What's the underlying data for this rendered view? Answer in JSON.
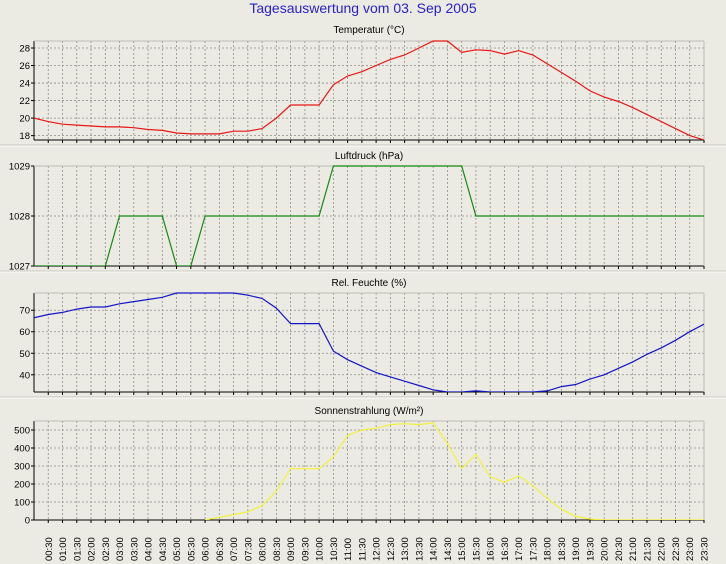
{
  "title": "Tagesauswertung vom 03. Sep 2005",
  "colors": {
    "background": "#ecebe3",
    "title": "#2a22c4",
    "grid": "#8e8e8e",
    "temperature": "#e81616",
    "pressure": "#138a13",
    "humidity": "#1414c8",
    "solar": "#f2f23a"
  },
  "x_tick_labels": [
    "00:30",
    "01:00",
    "01:30",
    "02:00",
    "02:30",
    "03:00",
    "03:30",
    "04:00",
    "04:30",
    "05:00",
    "05:30",
    "06:00",
    "06:30",
    "07:00",
    "07:30",
    "08:00",
    "08:30",
    "09:00",
    "09:30",
    "10:00",
    "10:30",
    "11:00",
    "11:30",
    "12:00",
    "12:30",
    "13:00",
    "13:30",
    "14:00",
    "14:30",
    "15:00",
    "15:30",
    "16:00",
    "16:30",
    "17:00",
    "17:30",
    "18:00",
    "18:30",
    "19:00",
    "19:30",
    "20:00",
    "20:30",
    "21:00",
    "21:30",
    "22:00",
    "22:30",
    "23:00",
    "23:30"
  ],
  "chart_data": [
    {
      "type": "line",
      "title": "Temperatur (°C)",
      "ylim": [
        17.5,
        28.8
      ],
      "yticks": [
        18,
        20,
        22,
        24,
        26,
        28
      ],
      "grid": true,
      "series": [
        {
          "color": "#e81616",
          "x": [
            0,
            1,
            2,
            3,
            4,
            5,
            6,
            7,
            8,
            9,
            10,
            11,
            12,
            13,
            14,
            15,
            16,
            17,
            18,
            19,
            20,
            21,
            22,
            23,
            24,
            25,
            26,
            27,
            28,
            29,
            30,
            31,
            32,
            33,
            34,
            35,
            36,
            37,
            38,
            39,
            40,
            41,
            42,
            43,
            44,
            45,
            46,
            47
          ],
          "values": [
            20.0,
            19.6,
            19.3,
            19.2,
            19.1,
            19.0,
            19.0,
            18.9,
            18.7,
            18.6,
            18.3,
            18.2,
            18.2,
            18.2,
            18.5,
            18.5,
            18.8,
            20.0,
            21.5,
            21.5,
            21.5,
            23.8,
            24.8,
            25.3,
            26.0,
            26.7,
            27.2,
            28.0,
            28.8,
            28.8,
            27.5,
            27.8,
            27.7,
            27.3,
            27.7,
            27.2,
            26.2,
            25.2,
            24.2,
            23.1,
            22.4,
            21.9,
            21.2,
            20.4,
            19.6,
            18.8,
            18.0,
            17.5
          ]
        }
      ]
    },
    {
      "type": "line",
      "title": "Luftdruck (hPa)",
      "ylim": [
        1027,
        1029
      ],
      "yticks": [
        1027,
        1028,
        1029
      ],
      "grid": true,
      "series": [
        {
          "color": "#138a13",
          "x": [
            0,
            5,
            6,
            9,
            10,
            11,
            12,
            20,
            21,
            30,
            31,
            47
          ],
          "values": [
            1027,
            1027,
            1028,
            1028,
            1027,
            1027,
            1028,
            1028,
            1029,
            1029,
            1028,
            1028
          ]
        }
      ]
    },
    {
      "type": "line",
      "title": "Rel. Feuchte (%)",
      "ylim": [
        32,
        78
      ],
      "yticks": [
        40,
        50,
        60,
        70
      ],
      "grid": true,
      "series": [
        {
          "color": "#1414c8",
          "x": [
            0,
            1,
            2,
            3,
            4,
            5,
            6,
            7,
            8,
            9,
            10,
            11,
            12,
            13,
            14,
            15,
            16,
            17,
            18,
            19,
            20,
            21,
            22,
            23,
            24,
            25,
            26,
            27,
            28,
            29,
            30,
            31,
            32,
            33,
            34,
            35,
            36,
            37,
            38,
            39,
            40,
            41,
            42,
            43,
            44,
            45,
            46,
            47
          ],
          "values": [
            66.5,
            68.0,
            69.0,
            70.5,
            71.5,
            71.5,
            73.0,
            74.0,
            75.0,
            76.0,
            78.0,
            78.0,
            78.0,
            78.0,
            78.0,
            77.0,
            75.5,
            71.0,
            63.8,
            63.8,
            63.8,
            51.0,
            47.0,
            44.0,
            41.0,
            39.0,
            37.0,
            35.0,
            33.0,
            32.0,
            32.0,
            32.5,
            32.0,
            32.0,
            32.0,
            32.0,
            32.5,
            34.5,
            35.5,
            38.0,
            40.0,
            43.0,
            46.0,
            49.5,
            52.5,
            56.0,
            60.0,
            63.5
          ]
        }
      ]
    },
    {
      "type": "line",
      "title": "Sonnenstrahlung (W/m²)",
      "ylim": [
        0,
        550
      ],
      "yticks": [
        0,
        100,
        200,
        300,
        400,
        500
      ],
      "grid": true,
      "series": [
        {
          "color": "#f2f23a",
          "x": [
            12,
            13,
            14,
            15,
            16,
            17,
            18,
            19,
            20,
            21,
            22,
            23,
            24,
            25,
            26,
            27,
            28,
            29,
            30,
            31,
            32,
            33,
            34,
            35,
            36,
            37,
            38,
            39,
            40,
            41,
            42,
            43,
            44,
            45,
            46,
            47
          ],
          "values": [
            0,
            15,
            30,
            45,
            80,
            160,
            285,
            285,
            285,
            350,
            470,
            500,
            510,
            530,
            535,
            530,
            540,
            425,
            285,
            365,
            240,
            210,
            245,
            190,
            120,
            60,
            20,
            5,
            0,
            0,
            0,
            0,
            0,
            0,
            0,
            0
          ]
        }
      ]
    }
  ]
}
